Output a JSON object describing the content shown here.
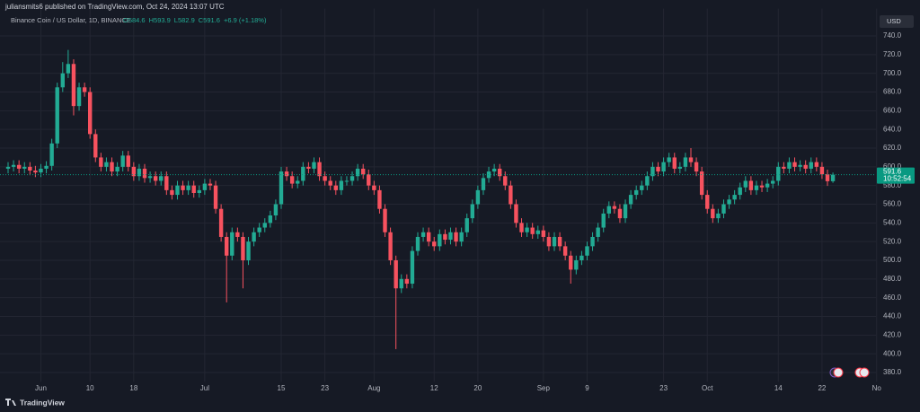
{
  "header": {
    "byline": "juliansmits6 published on TradingView.com, Oct 24, 2024 13:07 UTC",
    "footer": "TradingView"
  },
  "chart_data": {
    "type": "candlestick",
    "symbol": "Binance Coin / US Dollar, 1D, BINANCE",
    "ohlc_labels": [
      "O584.6",
      "H593.9",
      "L582.9",
      "C591.6",
      "+6.9 (+1.18%)"
    ],
    "currency": "USD",
    "countdown": "10:52:54",
    "up_color": "#22ab94",
    "down_color": "#f7525f",
    "last_price_color": "#089981",
    "grid": true,
    "categories": [
      null,
      null,
      null,
      null,
      null,
      null,
      "Jun",
      null,
      null,
      null,
      null,
      null,
      null,
      null,
      null,
      "10",
      null,
      null,
      null,
      null,
      null,
      null,
      null,
      "18",
      null,
      null,
      null,
      null,
      null,
      null,
      null,
      null,
      null,
      null,
      null,
      null,
      "Jul",
      null,
      null,
      null,
      null,
      null,
      null,
      null,
      null,
      null,
      null,
      null,
      null,
      null,
      "15",
      null,
      null,
      null,
      null,
      null,
      null,
      null,
      "23",
      null,
      null,
      null,
      null,
      null,
      null,
      null,
      null,
      "Aug",
      null,
      null,
      null,
      null,
      null,
      null,
      null,
      null,
      null,
      null,
      "12",
      null,
      null,
      null,
      null,
      null,
      null,
      null,
      "20",
      null,
      null,
      null,
      null,
      null,
      null,
      null,
      null,
      null,
      null,
      null,
      "Sep",
      null,
      null,
      null,
      null,
      null,
      null,
      null,
      "9",
      null,
      null,
      null,
      null,
      null,
      null,
      null,
      null,
      null,
      null,
      null,
      null,
      null,
      "23",
      null,
      null,
      null,
      null,
      null,
      null,
      null,
      "Oct",
      null,
      null,
      null,
      null,
      null,
      null,
      null,
      null,
      null,
      null,
      null,
      null,
      "14",
      null,
      null,
      null,
      null,
      null,
      null,
      null,
      "22",
      null,
      null,
      null,
      null,
      null,
      null,
      null,
      null,
      null,
      "No"
    ],
    "open": [
      598,
      600,
      602,
      598,
      600,
      596,
      594,
      598,
      601,
      625,
      685,
      700,
      710,
      665,
      685,
      680,
      635,
      610,
      600,
      605,
      595,
      600,
      612,
      600,
      590,
      598,
      588,
      590,
      585,
      590,
      575,
      570,
      580,
      575,
      580,
      572,
      575,
      582,
      580,
      555,
      525,
      505,
      530,
      525,
      500,
      520,
      530,
      535,
      540,
      548,
      560,
      595,
      590,
      582,
      585,
      600,
      598,
      605,
      590,
      585,
      580,
      575,
      585,
      585,
      590,
      598,
      592,
      580,
      575,
      555,
      530,
      500,
      470,
      480,
      475,
      510,
      525,
      530,
      520,
      515,
      528,
      522,
      530,
      520,
      530,
      545,
      560,
      575,
      588,
      595,
      598,
      590,
      580,
      560,
      540,
      530,
      535,
      528,
      532,
      525,
      515,
      525,
      515,
      505,
      490,
      500,
      505,
      515,
      525,
      535,
      550,
      558,
      555,
      545,
      560,
      570,
      575,
      580,
      590,
      600,
      595,
      605,
      610,
      598,
      600,
      610,
      605,
      595,
      570,
      555,
      545,
      550,
      560,
      565,
      570,
      578,
      585,
      575,
      580,
      578,
      582,
      585,
      600,
      598,
      605,
      600,
      602,
      598,
      605,
      600,
      592,
      584.6,
      null,
      null,
      null,
      null,
      null,
      null,
      null,
      null
    ],
    "high": [
      605,
      607,
      607,
      605,
      605,
      601,
      603,
      606,
      630,
      690,
      712,
      725,
      715,
      690,
      690,
      685,
      640,
      615,
      610,
      610,
      605,
      617,
      617,
      605,
      603,
      603,
      595,
      595,
      595,
      595,
      580,
      585,
      585,
      585,
      585,
      580,
      587,
      587,
      585,
      560,
      530,
      535,
      535,
      530,
      525,
      535,
      540,
      545,
      553,
      565,
      600,
      600,
      595,
      590,
      605,
      605,
      610,
      610,
      595,
      590,
      585,
      590,
      590,
      595,
      603,
      603,
      597,
      585,
      580,
      560,
      535,
      505,
      485,
      485,
      515,
      530,
      535,
      535,
      525,
      533,
      533,
      535,
      535,
      535,
      550,
      565,
      580,
      593,
      600,
      603,
      603,
      595,
      585,
      565,
      545,
      540,
      540,
      537,
      537,
      530,
      530,
      530,
      520,
      510,
      505,
      510,
      520,
      530,
      540,
      555,
      563,
      563,
      560,
      565,
      575,
      580,
      585,
      595,
      605,
      605,
      610,
      615,
      615,
      605,
      615,
      620,
      610,
      600,
      575,
      560,
      555,
      565,
      570,
      575,
      583,
      590,
      590,
      585,
      585,
      587,
      590,
      605,
      605,
      610,
      610,
      607,
      607,
      610,
      610,
      605,
      597,
      593.9,
      null,
      null,
      null,
      null,
      null,
      null,
      null,
      null
    ],
    "low": [
      593,
      595,
      593,
      593,
      591,
      589,
      589,
      593,
      596,
      620,
      680,
      695,
      655,
      660,
      675,
      630,
      605,
      595,
      595,
      590,
      590,
      595,
      595,
      585,
      585,
      583,
      583,
      580,
      580,
      570,
      565,
      565,
      570,
      570,
      567,
      567,
      570,
      575,
      550,
      520,
      455,
      500,
      520,
      470,
      495,
      515,
      525,
      530,
      535,
      543,
      555,
      585,
      577,
      577,
      580,
      593,
      593,
      585,
      580,
      575,
      570,
      570,
      580,
      580,
      585,
      587,
      575,
      570,
      550,
      525,
      495,
      405,
      465,
      470,
      470,
      505,
      520,
      515,
      510,
      510,
      517,
      517,
      515,
      515,
      525,
      540,
      555,
      570,
      583,
      590,
      585,
      575,
      555,
      535,
      525,
      525,
      523,
      523,
      520,
      510,
      510,
      510,
      500,
      475,
      485,
      495,
      500,
      510,
      520,
      530,
      545,
      550,
      540,
      540,
      555,
      565,
      570,
      575,
      585,
      590,
      590,
      600,
      593,
      593,
      595,
      600,
      590,
      565,
      550,
      540,
      540,
      545,
      555,
      560,
      565,
      573,
      570,
      570,
      573,
      573,
      577,
      580,
      593,
      593,
      595,
      595,
      593,
      593,
      595,
      587,
      579.6,
      582.9,
      null,
      null,
      null,
      null,
      null,
      null,
      null,
      null
    ],
    "close": [
      600,
      602,
      598,
      600,
      596,
      594,
      598,
      601,
      625,
      685,
      700,
      710,
      665,
      685,
      680,
      635,
      610,
      600,
      605,
      595,
      600,
      612,
      600,
      590,
      598,
      588,
      590,
      585,
      590,
      575,
      570,
      580,
      575,
      580,
      572,
      575,
      582,
      580,
      555,
      525,
      505,
      530,
      525,
      500,
      520,
      530,
      535,
      540,
      548,
      560,
      595,
      590,
      582,
      585,
      600,
      598,
      605,
      590,
      585,
      580,
      575,
      585,
      585,
      590,
      598,
      592,
      580,
      575,
      555,
      530,
      500,
      470,
      480,
      475,
      510,
      525,
      530,
      520,
      515,
      528,
      522,
      530,
      520,
      530,
      545,
      560,
      575,
      588,
      595,
      598,
      590,
      580,
      560,
      540,
      530,
      535,
      528,
      532,
      525,
      515,
      525,
      515,
      505,
      490,
      500,
      505,
      515,
      525,
      535,
      550,
      558,
      555,
      545,
      560,
      570,
      575,
      580,
      590,
      600,
      595,
      605,
      610,
      598,
      600,
      610,
      605,
      595,
      570,
      555,
      545,
      550,
      560,
      565,
      570,
      578,
      585,
      575,
      580,
      578,
      582,
      585,
      600,
      598,
      605,
      600,
      602,
      598,
      605,
      600,
      592,
      584.6,
      591.6,
      null,
      null,
      null,
      null,
      null,
      null,
      null,
      null
    ],
    "ylim": [
      370,
      750
    ],
    "yticks": [
      {
        "value": 380,
        "label": "380.0"
      },
      {
        "value": 400,
        "label": "400.0"
      },
      {
        "value": 420,
        "label": "420.0"
      },
      {
        "value": 440,
        "label": "440.0"
      },
      {
        "value": 460,
        "label": "460.0"
      },
      {
        "value": 480,
        "label": "480.0"
      },
      {
        "value": 500,
        "label": "500.0"
      },
      {
        "value": 520,
        "label": "520.0"
      },
      {
        "value": 540,
        "label": "540.0"
      },
      {
        "value": 560,
        "label": "560.0"
      },
      {
        "value": 580,
        "label": "580.0"
      },
      {
        "value": 600,
        "label": "600.0"
      },
      {
        "value": 620,
        "label": "620.0"
      },
      {
        "value": 640,
        "label": "640.0"
      },
      {
        "value": 660,
        "label": "660.0"
      },
      {
        "value": 680,
        "label": "680.0"
      },
      {
        "value": 700,
        "label": "700.0"
      },
      {
        "value": 720,
        "label": "720.0"
      },
      {
        "value": 740,
        "label": "740.0"
      }
    ]
  }
}
